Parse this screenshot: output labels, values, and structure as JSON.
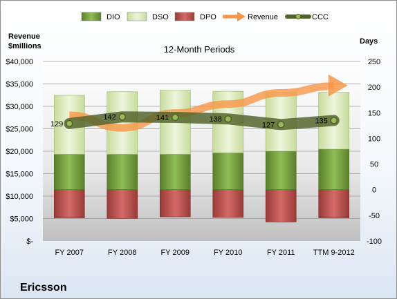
{
  "chart_data": {
    "type": "bar",
    "title": "12-Month Periods",
    "company": "Ericsson",
    "left_axis_label": "Revenue\n$millions",
    "right_axis_label": "Days",
    "categories": [
      "FY 2007",
      "FY 2008",
      "FY 2009",
      "FY 2010",
      "FY 2011",
      "TTM 9-2012"
    ],
    "left_axis": {
      "ylim": [
        0,
        40000
      ],
      "ticks": [
        0,
        5000,
        10000,
        15000,
        20000,
        25000,
        30000,
        35000,
        40000
      ],
      "tick_labels": [
        "$-",
        "$5,000",
        "$10,000",
        "$15,000",
        "$20,000",
        "$25,000",
        "$30,000",
        "$35,000",
        "$40,000"
      ]
    },
    "right_axis": {
      "ylim": [
        -100,
        250
      ],
      "ticks": [
        -100,
        -50,
        0,
        50,
        100,
        150,
        200,
        250
      ],
      "tick_labels": [
        "-100",
        "-50",
        "0",
        "50",
        "100",
        "150",
        "200",
        "250"
      ]
    },
    "series": [
      {
        "name": "DIO",
        "axis": "days",
        "stack": "positive",
        "values": [
          69,
          69,
          69,
          72,
          75,
          79
        ],
        "color": "#77a843"
      },
      {
        "name": "DSO",
        "axis": "days",
        "stack": "positive",
        "values": [
          115,
          122,
          125,
          120,
          115,
          111
        ],
        "color": "#dbe8bd"
      },
      {
        "name": "DPO",
        "axis": "days",
        "stack": "negative",
        "values": [
          -55,
          -56,
          -53,
          -54,
          -63,
          -55
        ],
        "color": "#c0504d"
      },
      {
        "name": "Revenue",
        "axis": "revenue",
        "type": "line",
        "values": [
          28000,
          25200,
          28500,
          30500,
          33000,
          34500
        ],
        "color": "#f79646"
      },
      {
        "name": "CCC",
        "axis": "days",
        "type": "line",
        "values": [
          129,
          142,
          141,
          138,
          127,
          135
        ],
        "color": "#4f6228"
      }
    ],
    "data_labels": [
      "129",
      "142",
      "141",
      "138",
      "127",
      "135"
    ],
    "legend": [
      "DIO",
      "DSO",
      "DPO",
      "Revenue",
      "CCC"
    ],
    "legend_position": "top",
    "grid": true
  }
}
